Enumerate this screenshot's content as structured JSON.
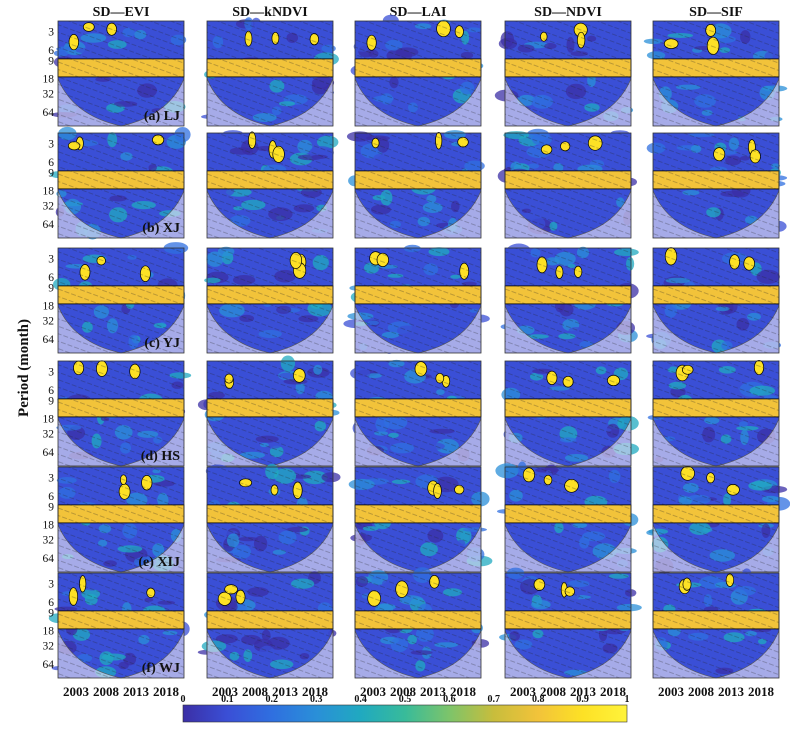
{
  "chart_data": {
    "type": "heatmap",
    "description_type": "wavelet coherence grid",
    "column_titles": [
      "SD—EVI",
      "SD—kNDVI",
      "SD—LAI",
      "SD—NDVI",
      "SD—SIF"
    ],
    "row_labels": [
      "(a) LJ",
      "(b) XJ",
      "(c) YJ",
      "(d) HS",
      "(e) XIJ",
      "(f) WJ"
    ],
    "ylabel": "Period (month)",
    "yticks": [
      "3",
      "6",
      "9",
      "18",
      "32",
      "64"
    ],
    "xticks": [
      "2003",
      "2008",
      "2013",
      "2018"
    ],
    "xlim": [
      2000,
      2021
    ],
    "colorbar": {
      "min": 0,
      "max": 1,
      "ticks": [
        "0",
        "0.1",
        "0.2",
        "0.3",
        "0.4",
        "0.5",
        "0.6",
        "0.7",
        "0.8",
        "0.9",
        "1"
      ],
      "colors": [
        "#3b2fa6",
        "#3a4fd6",
        "#2f6fe0",
        "#2a8fd8",
        "#20a9c0",
        "#38bb9a",
        "#7dc46a",
        "#c8bd3c",
        "#f2c33a",
        "#fde125",
        "#fff33b"
      ]
    },
    "significant_band_period_months": [
      12,
      12,
      12,
      12,
      12,
      12
    ]
  }
}
